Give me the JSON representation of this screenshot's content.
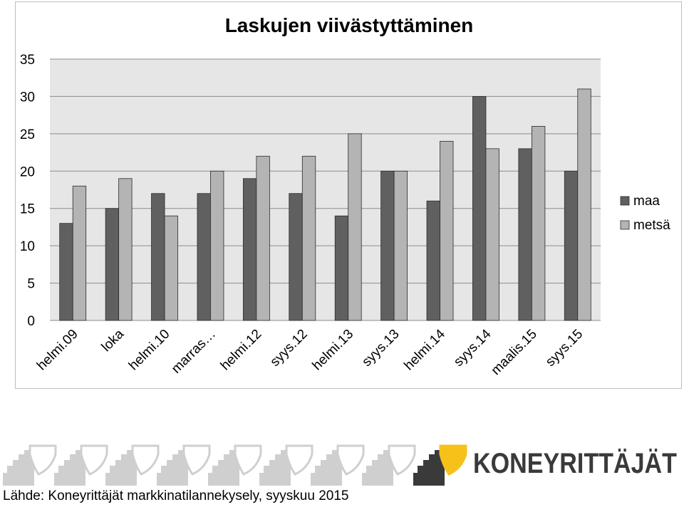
{
  "chart_data": {
    "type": "bar",
    "title": "Laskujen viivästyttäminen",
    "categories": [
      "helmi.09",
      "loka",
      "helmi.10",
      "marras…",
      "helmi.12",
      "syys.12",
      "helmi.13",
      "syys.13",
      "helmi.14",
      "syys.14",
      "maalis.15",
      "syys.15"
    ],
    "series": [
      {
        "name": "maa",
        "color": "#606060",
        "values": [
          13,
          15,
          17,
          17,
          19,
          17,
          14,
          20,
          16,
          30,
          23,
          20
        ]
      },
      {
        "name": "metsä",
        "color": "#b4b4b4",
        "values": [
          18,
          19,
          14,
          20,
          22,
          22,
          25,
          20,
          24,
          23,
          26,
          31
        ]
      }
    ],
    "ylim": [
      0,
      35
    ],
    "yticks": [
      0,
      5,
      10,
      15,
      20,
      25,
      30,
      35
    ],
    "xlabel": "",
    "ylabel": "",
    "grid": true,
    "legend_position": "right",
    "plot_background": "#e6e6e6"
  },
  "logo": {
    "brand": "KONEYRITTÄJÄT",
    "accent_color": "#f6c21a",
    "brand_color": "#3a3a3a",
    "pattern_color": "#cfcfcf"
  },
  "footer": {
    "source": "Lähde: Koneyrittäjät markkinatilannekysely, syyskuu 2015"
  }
}
